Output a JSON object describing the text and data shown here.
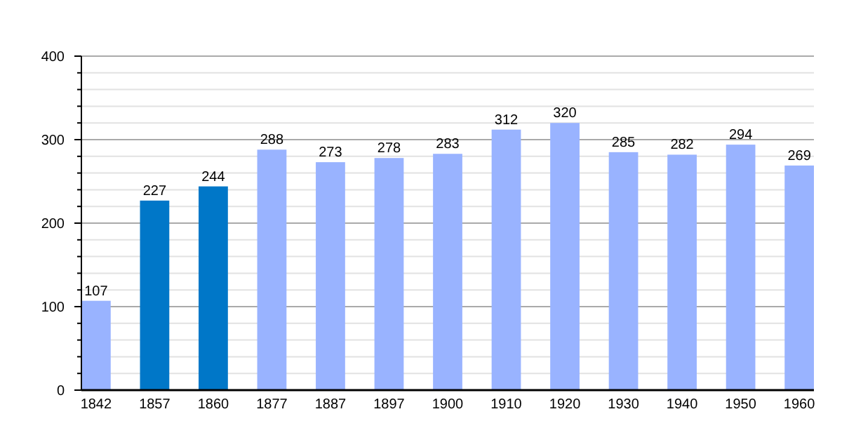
{
  "chart_data": {
    "type": "bar",
    "categories": [
      "1842",
      "1857",
      "1860",
      "1877",
      "1887",
      "1897",
      "1900",
      "1910",
      "1920",
      "1930",
      "1940",
      "1950",
      "1960"
    ],
    "values": [
      107,
      227,
      244,
      288,
      273,
      278,
      283,
      312,
      320,
      285,
      282,
      294,
      269
    ],
    "colors": [
      "#99b3ff",
      "#0077c8",
      "#0077c8",
      "#99b3ff",
      "#99b3ff",
      "#99b3ff",
      "#99b3ff",
      "#99b3ff",
      "#99b3ff",
      "#99b3ff",
      "#99b3ff",
      "#99b3ff",
      "#99b3ff"
    ],
    "ylim": [
      0,
      400
    ],
    "yticks": [
      0,
      {
        "value": 20,
        "label": null
      },
      {
        "value": 40,
        "label": null
      },
      {
        "value": 60,
        "label": null
      },
      {
        "value": 80,
        "label": null
      },
      100,
      {
        "value": 120,
        "label": null
      },
      {
        "value": 140,
        "label": null
      },
      {
        "value": 160,
        "label": null
      },
      {
        "value": 180,
        "label": null
      },
      200,
      {
        "value": 220,
        "label": null
      },
      {
        "value": 240,
        "label": null
      },
      {
        "value": 260,
        "label": null
      },
      {
        "value": 280,
        "label": null
      },
      300,
      {
        "value": 320,
        "label": null
      },
      {
        "value": 340,
        "label": null
      },
      {
        "value": 360,
        "label": null
      },
      {
        "value": 380,
        "label": null
      },
      400
    ],
    "grid": true,
    "data_labels": true
  }
}
